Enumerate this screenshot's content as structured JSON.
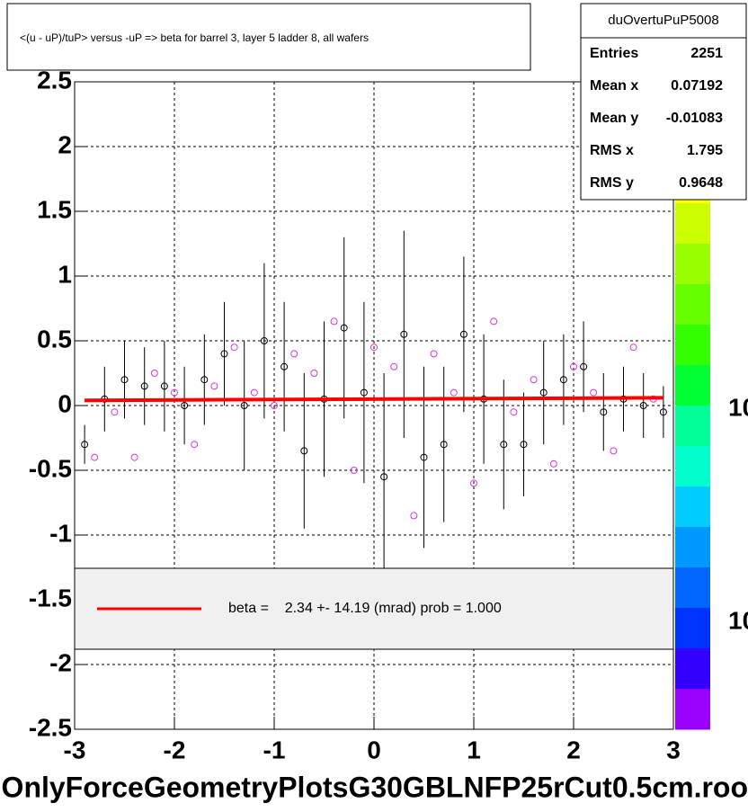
{
  "chart_data": {
    "type": "scatter",
    "title": "<(u - uP)/tuP> versus  -uP => beta for barrel 3, layer 5 ladder 8, all wafers",
    "footer": "OnlyForceGeometryPlotsG30GBLNFP25rCut0.5cm.roo",
    "xlim": [
      -3,
      3
    ],
    "ylim": [
      -2.5,
      2.5
    ],
    "xticks": [
      -3,
      -2,
      -1,
      0,
      1,
      2,
      3
    ],
    "yticks": [
      -2.5,
      -2,
      -1.5,
      -1,
      -0.5,
      0,
      0.5,
      1,
      1.5,
      2,
      2.5
    ],
    "grid": true,
    "series": [
      {
        "color": "#000000",
        "x": [
          -2.9,
          -2.7,
          -2.5,
          -2.3,
          -2.1,
          -1.9,
          -1.7,
          -1.5,
          -1.3,
          -1.1,
          -0.9,
          -0.7,
          -0.5,
          -0.3,
          -0.1,
          0.1,
          0.3,
          0.5,
          0.7,
          0.9,
          1.1,
          1.3,
          1.5,
          1.7,
          1.9,
          2.1,
          2.3,
          2.5,
          2.7,
          2.9
        ],
        "values": [
          -0.3,
          0.05,
          0.2,
          0.15,
          0.15,
          0.0,
          0.2,
          0.4,
          0.0,
          0.5,
          0.3,
          -0.35,
          0.05,
          0.6,
          0.1,
          -0.55,
          0.55,
          -0.4,
          -0.3,
          0.55,
          0.05,
          -0.3,
          -0.3,
          0.1,
          0.2,
          0.3,
          -0.05,
          0.05,
          0.0,
          -0.05
        ],
        "errors": [
          0.15,
          0.25,
          0.3,
          0.3,
          0.35,
          0.3,
          0.35,
          0.4,
          0.5,
          0.6,
          0.5,
          0.6,
          0.6,
          0.7,
          0.7,
          0.8,
          0.8,
          0.7,
          0.6,
          0.6,
          0.5,
          0.5,
          0.4,
          0.4,
          0.35,
          0.35,
          0.3,
          0.25,
          0.25,
          0.2
        ]
      },
      {
        "color": "#dd33dd",
        "x": [
          -2.8,
          -2.6,
          -2.4,
          -2.2,
          -2.0,
          -1.8,
          -1.6,
          -1.4,
          -1.2,
          -1.0,
          -0.8,
          -0.6,
          -0.4,
          -0.2,
          0.0,
          0.2,
          0.4,
          0.6,
          0.8,
          1.0,
          1.2,
          1.4,
          1.6,
          1.8,
          2.0,
          2.2,
          2.4,
          2.6,
          2.8
        ],
        "values": [
          -0.4,
          -0.05,
          -0.4,
          0.25,
          0.1,
          -0.3,
          0.15,
          0.45,
          0.1,
          0.0,
          0.4,
          0.25,
          0.65,
          -0.5,
          0.45,
          0.3,
          -0.85,
          0.4,
          0.1,
          -0.6,
          0.65,
          -0.05,
          0.2,
          -0.45,
          0.3,
          0.1,
          -0.35,
          0.45,
          0.05
        ]
      }
    ],
    "fit": {
      "color": "#ff0000",
      "x": [
        -2.9,
        2.9
      ],
      "values": [
        0.04,
        0.06
      ]
    },
    "legend_text": "beta =    2.34 +- 14.19 (mrad) prob = 1.000",
    "stats": {
      "title": "duOvertuPuP5008",
      "rows": [
        [
          "Entries",
          "2251"
        ],
        [
          "Mean x",
          "0.07192"
        ],
        [
          "Mean y",
          "-0.01083"
        ],
        [
          "RMS x",
          "1.795"
        ],
        [
          "RMS y",
          "0.9648"
        ]
      ]
    },
    "palette": [
      "#ff9900",
      "#ffcc00",
      "#ffff00",
      "#ccff00",
      "#99ff00",
      "#66ff00",
      "#33ff00",
      "#00ff33",
      "#00ff99",
      "#00ffcc",
      "#00ccff",
      "#0099ff",
      "#0066ff",
      "#0033ff",
      "#3300ff",
      "#9900ff"
    ],
    "palette_labels": [
      "10",
      "10"
    ]
  }
}
